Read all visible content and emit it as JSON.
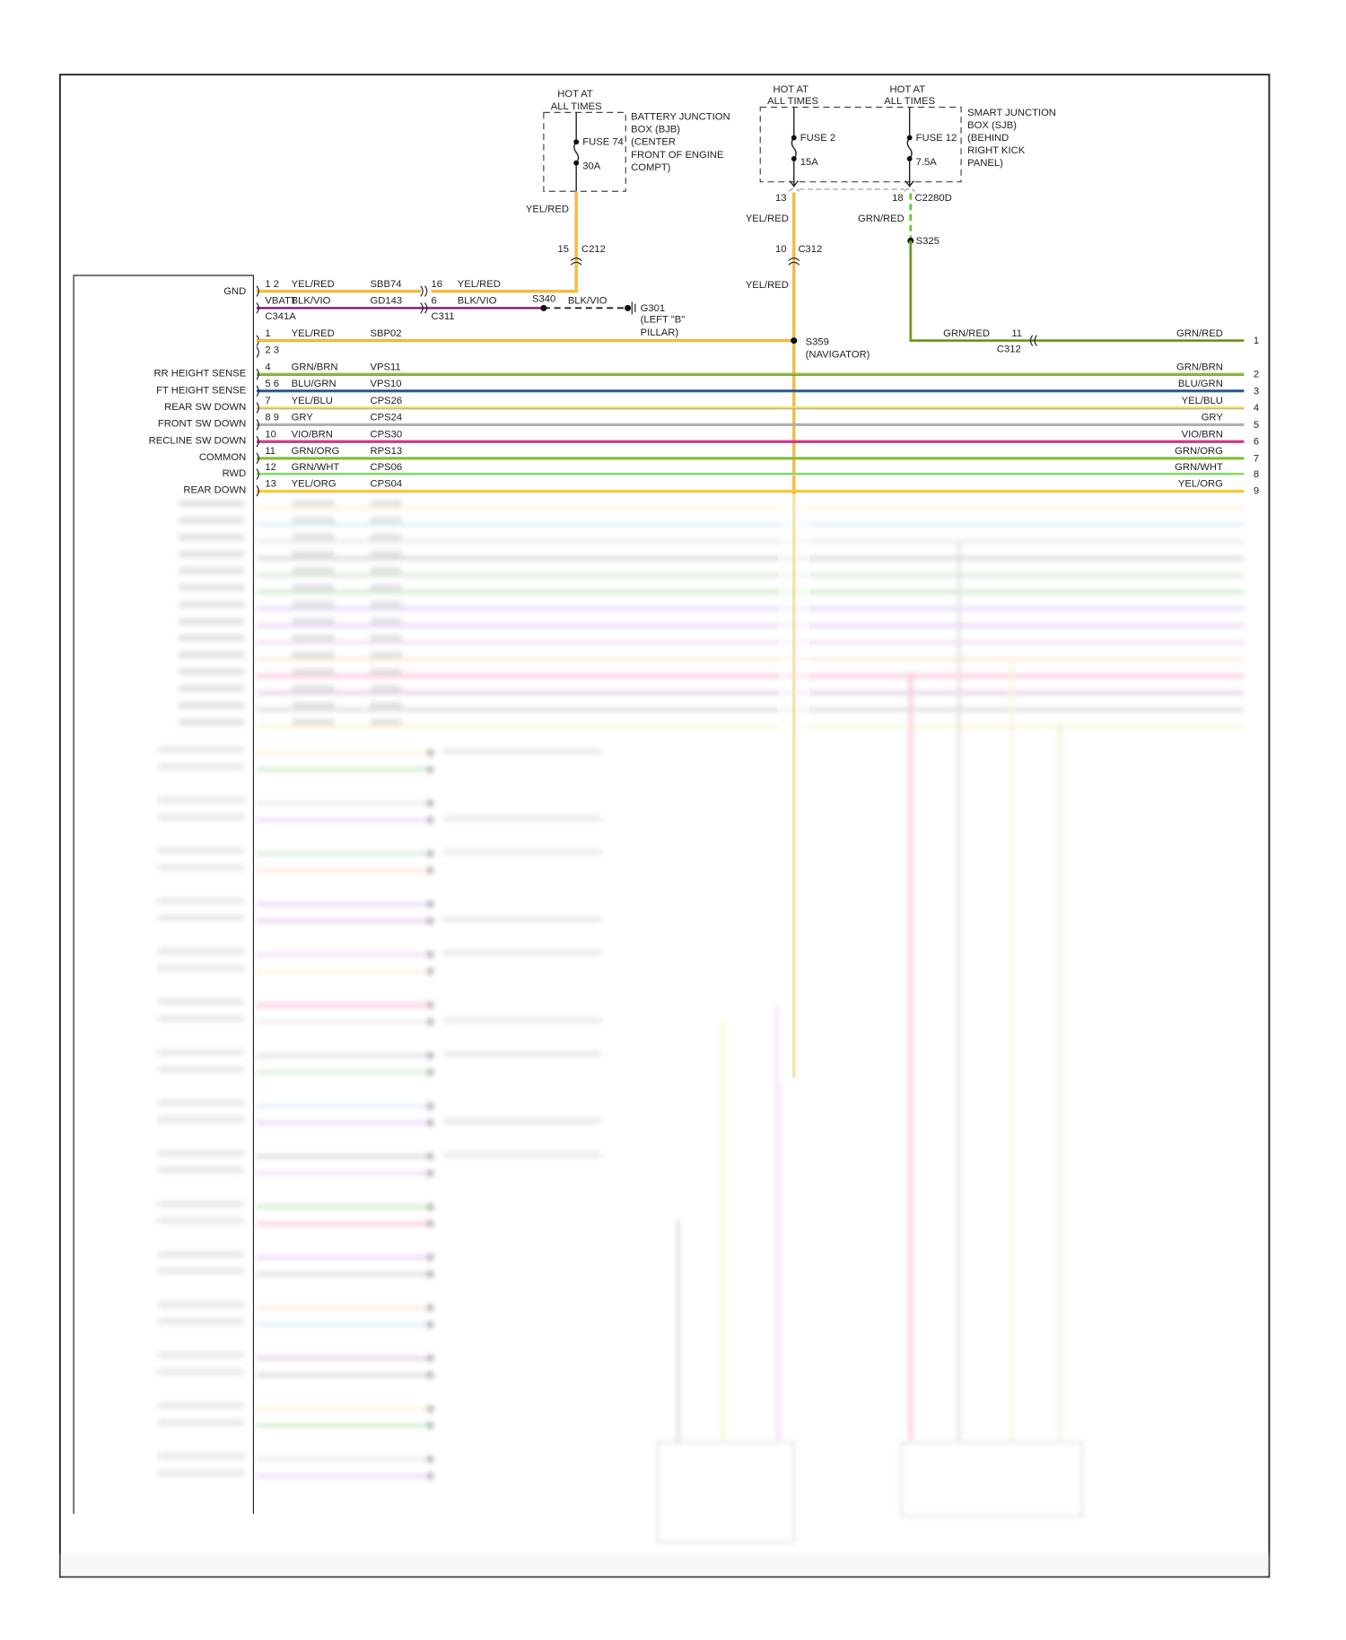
{
  "bjb": {
    "hot": [
      "HOT AT",
      "ALL TIMES"
    ],
    "fuse": "FUSE 74",
    "amps": "30A",
    "label": [
      "BATTERY JUNCTION",
      "BOX (BJB)",
      "(CENTER",
      "FRONT OF ENGINE",
      "COMPT)"
    ],
    "wire_color": "YEL/RED",
    "pin": "15",
    "connector": "C212"
  },
  "sjb": {
    "hot_left": [
      "HOT AT",
      "ALL TIMES"
    ],
    "hot_right": [
      "HOT AT",
      "ALL TIMES"
    ],
    "fuse_left": "FUSE 2",
    "amps_left": "15A",
    "fuse_right": "FUSE 12",
    "amps_right": "7.5A",
    "label": [
      "SMART JUNCTION",
      "BOX (SJB)",
      "(BEHIND",
      "RIGHT KICK",
      "PANEL)"
    ],
    "pin_left": "13",
    "pin_right": "18",
    "connector": "C2280D",
    "wire_left": "YEL/RED",
    "wire_right": "GRN/RED",
    "splice_right": "S325",
    "c312_pin": "10",
    "c312": "C312",
    "wire_left_lower": "YEL/RED"
  },
  "splice_s359": [
    "S359",
    "(NAVIGATOR)"
  ],
  "grn_red_run": {
    "left_label": "GRN/RED",
    "pin": "11",
    "connector": "C312",
    "right_label": "GRN/RED",
    "right_pin": "1"
  },
  "power_rows": {
    "gnd_label": "GND",
    "row_a": {
      "pins": "1 2",
      "color": "YEL/RED",
      "circuit": "SBB74",
      "pin2": "16",
      "color2": "YEL/RED"
    },
    "row_b": {
      "pins": "VBATT",
      "color": "BLK/VIO",
      "circuit": "GD143",
      "pin2": "6",
      "color2": "BLK/VIO",
      "splice": "S340",
      "color3": "BLK/VIO"
    },
    "conn_left": "C341A",
    "conn_mid": "C311",
    "ground": [
      "G301",
      "(LEFT \"B\"",
      "PILLAR)"
    ],
    "row_c": {
      "pins": "1",
      "color": "YEL/RED",
      "circuit": "SBP02"
    },
    "row_d": {
      "pins": "2 3"
    }
  },
  "signal_rows": [
    {
      "label": "RR HEIGHT SENSE",
      "pins": "4",
      "color": "GRN/BRN",
      "circuit": "VPS11",
      "right_color": "GRN/BRN",
      "right_pin": "2",
      "hex": "#7cc63c",
      "hex2": "#8a5a2a"
    },
    {
      "label": "FT HEIGHT SENSE",
      "pins": "5 6",
      "color": "BLU/GRN",
      "circuit": "VPS10",
      "right_color": "BLU/GRN",
      "right_pin": "3",
      "hex": "#1f3fa8",
      "hex2": "#6cc33a"
    },
    {
      "label": "REAR SW DOWN",
      "pins": "7",
      "color": "YEL/BLU",
      "circuit": "CPS26",
      "right_color": "YEL/BLU",
      "right_pin": "4",
      "hex": "#f0e060",
      "hex2": "#8a8fa0"
    },
    {
      "label": "FRONT SW DOWN",
      "pins": "8 9",
      "color": "GRY",
      "circuit": "CPS24",
      "right_color": "GRY",
      "right_pin": "5",
      "hex": "#b0b0b0",
      "hex2": "#b0b0b0"
    },
    {
      "label": "RECLINE SW DOWN",
      "pins": "10",
      "color": "VIO/BRN",
      "circuit": "CPS30",
      "right_color": "VIO/BRN",
      "right_pin": "6",
      "hex": "#d8359a",
      "hex2": "#8a3a50"
    },
    {
      "label": "COMMON",
      "pins": "11",
      "color": "GRN/ORG",
      "circuit": "RPS13",
      "right_color": "GRN/ORG",
      "right_pin": "7",
      "hex": "#6cc33a",
      "hex2": "#e0a030"
    },
    {
      "label": "RWD",
      "pins": "12",
      "color": "GRN/WHT",
      "circuit": "CPS06",
      "right_color": "GRN/WHT",
      "right_pin": "8",
      "hex": "#7ddc60",
      "hex2": "#e8f5e0"
    },
    {
      "label": "REAR DOWN",
      "pins": "13",
      "color": "YEL/ORG",
      "circuit": "CPS04",
      "right_color": "YEL/ORG",
      "right_pin": "9",
      "hex": "#f5d630",
      "hex2": "#f0a030"
    }
  ],
  "colors": {
    "yel_red": "#f0a020",
    "yel_red_core": "#f7d23a",
    "blk_vio": "#5a2a5a",
    "grn_red": "#6cc33a",
    "grn_red_core": "#8a6a20"
  }
}
